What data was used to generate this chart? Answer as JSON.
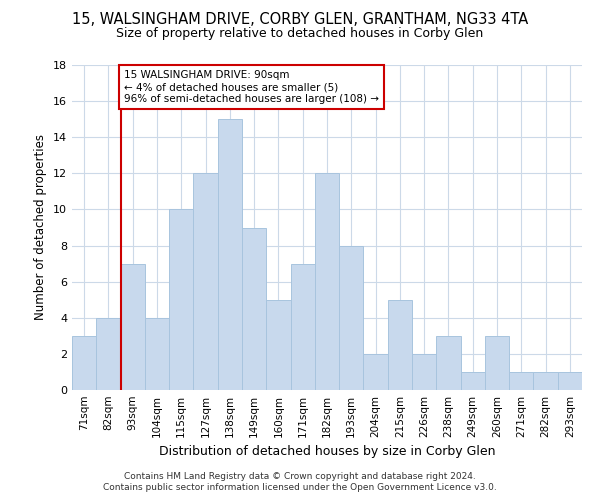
{
  "title": "15, WALSINGHAM DRIVE, CORBY GLEN, GRANTHAM, NG33 4TA",
  "subtitle": "Size of property relative to detached houses in Corby Glen",
  "xlabel": "Distribution of detached houses by size in Corby Glen",
  "ylabel": "Number of detached properties",
  "footer_line1": "Contains HM Land Registry data © Crown copyright and database right 2024.",
  "footer_line2": "Contains public sector information licensed under the Open Government Licence v3.0.",
  "bar_labels": [
    "71sqm",
    "82sqm",
    "93sqm",
    "104sqm",
    "115sqm",
    "127sqm",
    "138sqm",
    "149sqm",
    "160sqm",
    "171sqm",
    "182sqm",
    "193sqm",
    "204sqm",
    "215sqm",
    "226sqm",
    "238sqm",
    "249sqm",
    "260sqm",
    "271sqm",
    "282sqm",
    "293sqm"
  ],
  "bar_values": [
    3,
    4,
    7,
    4,
    10,
    12,
    15,
    9,
    5,
    7,
    12,
    8,
    2,
    5,
    2,
    3,
    1,
    3,
    1,
    1,
    1
  ],
  "bar_color": "#c8d9ed",
  "bar_edge_color": "#a8c4de",
  "ylim": [
    0,
    18
  ],
  "yticks": [
    0,
    2,
    4,
    6,
    8,
    10,
    12,
    14,
    16,
    18
  ],
  "property_line_color": "#cc0000",
  "annotation_text_line1": "15 WALSINGHAM DRIVE: 90sqm",
  "annotation_text_line2": "← 4% of detached houses are smaller (5)",
  "annotation_text_line3": "96% of semi-detached houses are larger (108) →",
  "annotation_box_color": "#ffffff",
  "annotation_box_edge_color": "#cc0000",
  "background_color": "#ffffff",
  "grid_color": "#ccd9e8"
}
